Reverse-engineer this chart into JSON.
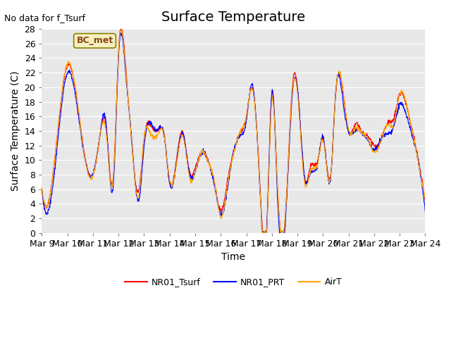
{
  "title": "Surface Temperature",
  "ylabel": "Surface Temperature (C)",
  "xlabel": "Time",
  "annotation": "No data for f_Tsurf",
  "box_label": "BC_met",
  "ylim": [
    0,
    28
  ],
  "yticks": [
    0,
    2,
    4,
    6,
    8,
    10,
    12,
    14,
    16,
    18,
    20,
    22,
    24,
    26,
    28
  ],
  "xtick_labels": [
    "Mar 9",
    "Mar 10",
    "Mar 11",
    "Mar 12",
    "Mar 13",
    "Mar 14",
    "Mar 15",
    "Mar 16",
    "Mar 17",
    "Mar 18",
    "Mar 19",
    "Mar 20",
    "Mar 21",
    "Mar 22",
    "Mar 23",
    "Mar 24"
  ],
  "colors": {
    "NR01_Tsurf": "#ff0000",
    "NR01_PRT": "#0000ff",
    "AirT": "#ffa500"
  },
  "background_color": "#e8e8e8",
  "legend_labels": [
    "NR01_Tsurf",
    "NR01_PRT",
    "AirT"
  ],
  "title_fontsize": 14,
  "axis_fontsize": 10,
  "tick_fontsize": 9
}
